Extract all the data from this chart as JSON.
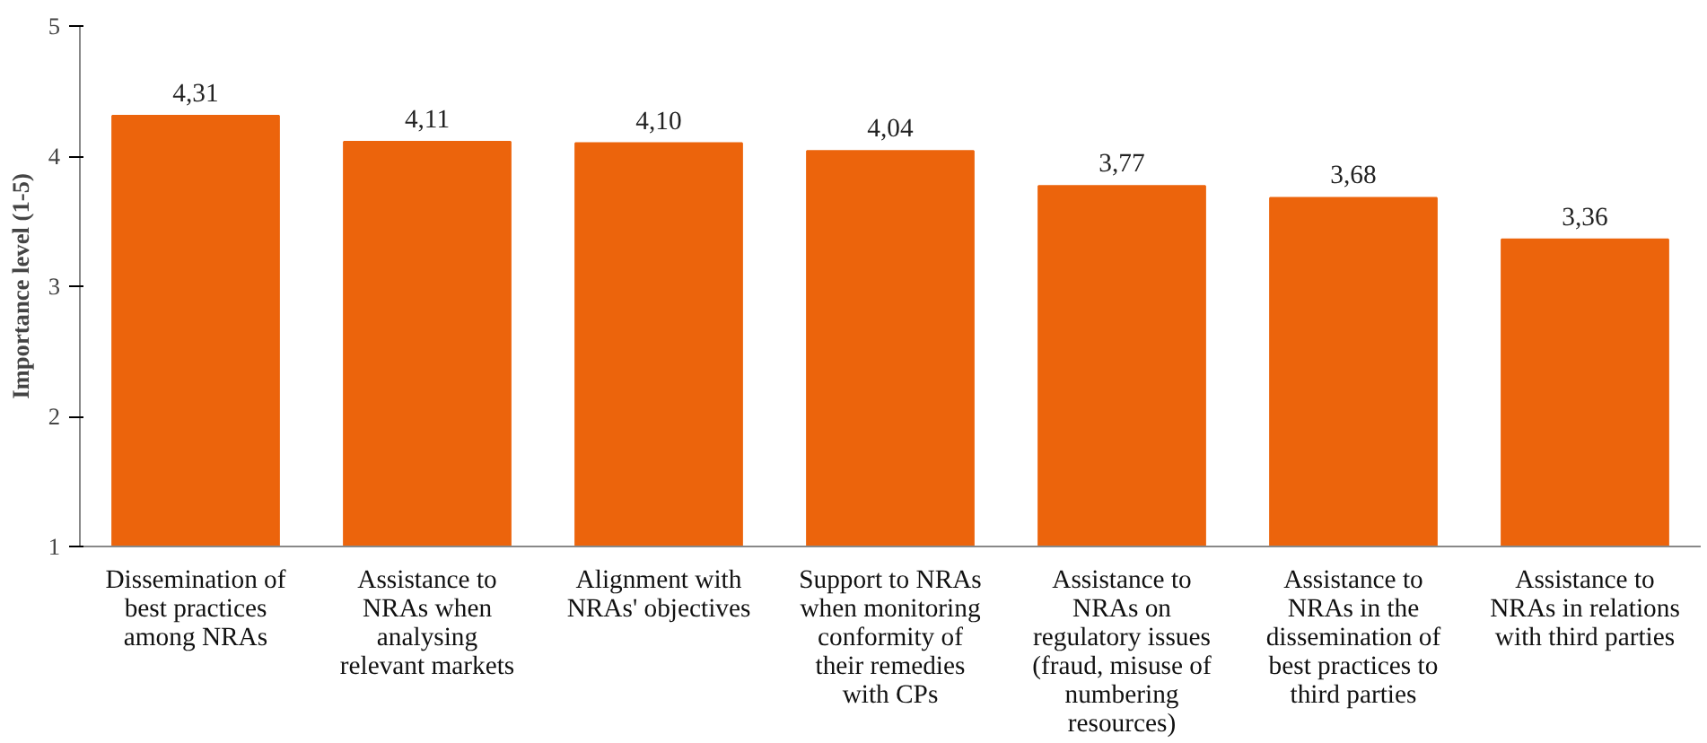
{
  "chart_data": {
    "type": "bar",
    "ylabel": "Importance level (1-5)",
    "categories": [
      "Dissemination of\nbest practices\namong NRAs",
      "Assistance to\nNRAs when\nanalysing\nrelevant markets",
      "Alignment with\nNRAs' objectives",
      "Support to NRAs\nwhen monitoring\nconformity of\ntheir remedies\nwith CPs",
      "Assistance to\nNRAs on\nregulatory issues\n(fraud, misuse of\nnumbering\nresources)",
      "Assistance to\nNRAs in the\ndissemination of\nbest practices to\nthird parties",
      "Assistance to\nNRAs in relations\nwith third parties"
    ],
    "values": [
      4.31,
      4.11,
      4.1,
      4.04,
      3.77,
      3.68,
      3.36
    ],
    "value_labels": [
      "4,31",
      "4,11",
      "4,10",
      "4,04",
      "3,77",
      "3,68",
      "3,36"
    ],
    "color": "#ec640c",
    "ylim": [
      1,
      5
    ],
    "yticks": [
      1,
      2,
      3,
      4,
      5
    ],
    "grid": false
  }
}
